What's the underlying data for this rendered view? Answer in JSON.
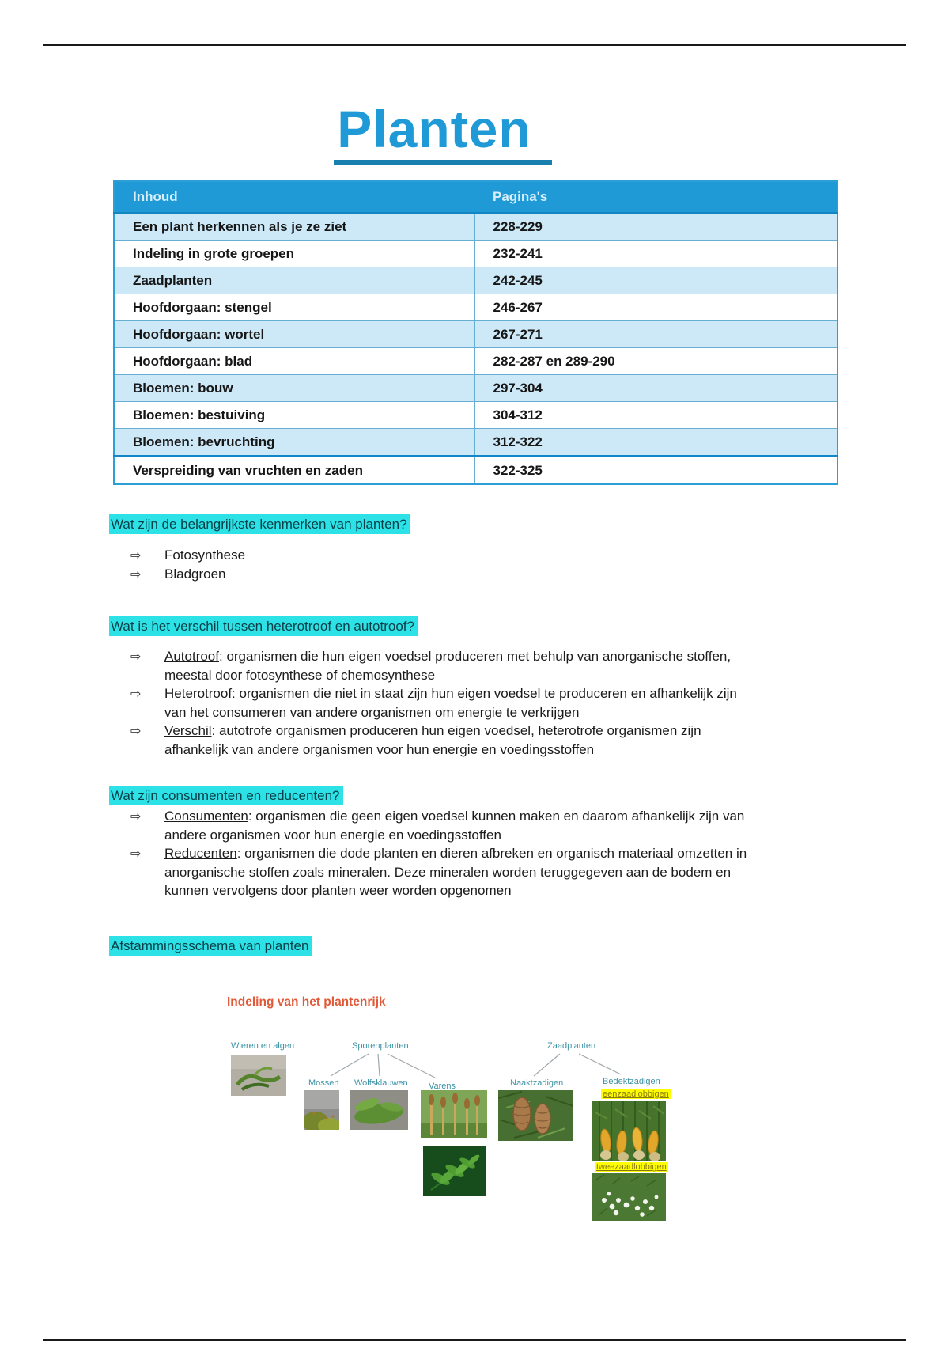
{
  "page_title": "Planten",
  "glyphs": {
    "bullet_arrow": "⇨"
  },
  "colors": {
    "accent_blue": "#1f9ad6",
    "title_underline": "#187fae",
    "table_header_bg": "#1f9ad6",
    "table_header_text": "#d9eefb",
    "row_alt": "#cde9f8",
    "row_border": "#66aed2",
    "outer_border": "#2b9fd6",
    "thick_sep": "#1286c8",
    "highlight_cyan": "#2de2e6",
    "heading_text": "#093f48",
    "diagram_title": "#e05a3a",
    "diagram_label": "#3d93a6",
    "highlight_yellow": "#ffff00",
    "yellow_text": "#8a7a10"
  },
  "toc": {
    "headers": [
      "Inhoud",
      "Pagina's"
    ],
    "rows": [
      [
        "Een plant herkennen als je ze ziet",
        "228-229"
      ],
      [
        "Indeling in grote groepen",
        "232-241"
      ],
      [
        "Zaadplanten",
        "242-245"
      ],
      [
        "Hoofdorgaan: stengel",
        "246-267"
      ],
      [
        "Hoofdorgaan: wortel",
        "267-271"
      ],
      [
        "Hoofdorgaan: blad",
        "282-287 en 289-290"
      ],
      [
        "Bloemen: bouw",
        "297-304"
      ],
      [
        "Bloemen: bestuiving",
        "304-312"
      ],
      [
        "Bloemen: bevruchting",
        "312-322"
      ],
      [
        "Verspreiding van vruchten en zaden",
        "322-325"
      ]
    ]
  },
  "sections": [
    {
      "heading": "Wat zijn de belangrijkste kenmerken van planten?",
      "bullets": [
        {
          "term": "",
          "text": "Fotosynthese"
        },
        {
          "term": "",
          "text": "Bladgroen"
        }
      ]
    },
    {
      "heading": "Wat is het verschil tussen heterotroof en autotroof?",
      "bullets": [
        {
          "term": "Autotroof",
          "text": ": organismen die hun eigen voedsel produceren met behulp van anorganische stoffen, meestal door fotosynthese of chemosynthese"
        },
        {
          "term": "Heterotroof",
          "text": ": organismen die niet in staat zijn hun eigen voedsel te produceren en afhankelijk zijn van het consumeren van andere organismen om energie te verkrijgen"
        },
        {
          "term": "Verschil",
          "text": ": autotrofe organismen produceren hun eigen voedsel, heterotrofe organismen zijn afhankelijk van andere organismen voor hun energie en voedingsstoffen"
        }
      ]
    },
    {
      "heading": "Wat zijn consumenten en reducenten?",
      "bullets": [
        {
          "term": "Consumenten",
          "text": ": organismen die geen eigen voedsel kunnen maken en daarom afhankelijk zijn van andere organismen voor hun energie en voedingsstoffen"
        },
        {
          "term": "Reducenten",
          "text": ": organismen die dode planten en dieren afbreken en organisch materiaal omzetten in anorganische stoffen zoals mineralen. Deze mineralen worden teruggegeven aan de bodem en kunnen vervolgens door planten weer worden opgenomen"
        }
      ]
    },
    {
      "heading": "Afstammingsschema van planten",
      "bullets": []
    }
  ],
  "diagram": {
    "title": "Indeling van het plantenrijk",
    "nodes": {
      "wieren_en_algen": "Wieren en algen",
      "sporenplanten": "Sporenplanten",
      "zaadplanten": "Zaadplanten",
      "mossen": "Mossen",
      "wolfsklauwen": "Wolfsklauwen",
      "varens": "Varens",
      "naaktzadigen": "Naaktzadigen",
      "bedektzadigen": "Bedektzadigen",
      "eenzaadlobbigen": "eenzaadlobbigen",
      "tweezaadlobbigen": "tweezaadlobbigen"
    }
  }
}
